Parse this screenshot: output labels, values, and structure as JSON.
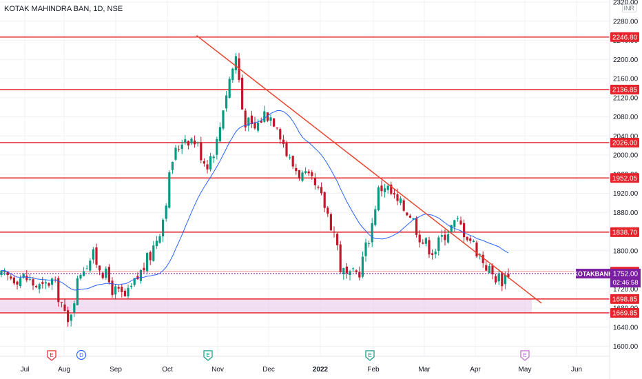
{
  "header": {
    "symbol_title": "KOTAK MAHINDRA BAN, 1D, NSE",
    "currency": "INR"
  },
  "colors": {
    "up": "#089981",
    "down": "#c2182b",
    "level": "#e4232a",
    "trend": "#e8452e",
    "ma": "#2962ff",
    "zone": "#e8c4ea",
    "price_badge": "#7b1fa2",
    "grid": "#eef0f4"
  },
  "chart_data": {
    "type": "candlestick",
    "y_axis": {
      "min": 1560,
      "max": 2320,
      "ticks": [
        1600,
        1640,
        1680,
        1720,
        1760,
        1800,
        1840,
        1880,
        1920,
        1960,
        2000,
        2040,
        2080,
        2120,
        2160,
        2200,
        2240,
        2280,
        2320
      ]
    },
    "x_axis": {
      "labels": [
        "Jul",
        "Aug",
        "Sep",
        "Oct",
        "Nov",
        "Dec",
        "2022",
        "Feb",
        "Mar",
        "Apr",
        "May",
        "Jun"
      ],
      "bold_labels": [
        "2022"
      ]
    },
    "horizontal_levels": [
      2246.8,
      2136.85,
      2026.0,
      1952.05,
      1838.7,
      1756.1,
      1698.85,
      1669.85
    ],
    "support_zone": [
      1669.85,
      1698.85
    ],
    "trendline": {
      "start": [
        "Oct 19",
        2250
      ],
      "end": [
        "May 11",
        1690
      ]
    },
    "last_price": {
      "symbol": "KOTAKBANK",
      "value": "1752.00",
      "countdown": "02:46:58"
    },
    "event_markers": [
      {
        "label": "E",
        "month": "Jul",
        "type": "earnings",
        "color": "#e4232a"
      },
      {
        "label": "D",
        "month": "Aug",
        "type": "dividend",
        "color": "#2962ff"
      },
      {
        "label": "E",
        "month": "Oct",
        "type": "earnings",
        "color": "#089981"
      },
      {
        "label": "E",
        "month": "Jan",
        "type": "earnings",
        "color": "#089981"
      },
      {
        "label": "E",
        "month": "Apr",
        "type": "earnings-upcoming",
        "color": "#ba68c8"
      }
    ],
    "moving_average": {
      "period": "",
      "color": "#2962ff"
    },
    "ohlc_nodes": [
      [
        "Jul 01",
        1745
      ],
      [
        "Jul 08",
        1730
      ],
      [
        "Jul 15",
        1720
      ],
      [
        "Jul 22",
        1740
      ],
      [
        "Jul 29",
        1700
      ],
      [
        "Aug 03",
        1640
      ],
      [
        "Aug 06",
        1690
      ],
      [
        "Aug 11",
        1760
      ],
      [
        "Aug 18",
        1790
      ],
      [
        "Aug 24",
        1760
      ],
      [
        "Aug 31",
        1715
      ],
      [
        "Sep 07",
        1700
      ],
      [
        "Sep 14",
        1745
      ],
      [
        "Sep 21",
        1790
      ],
      [
        "Sep 28",
        1860
      ],
      [
        "Oct 04",
        1990
      ],
      [
        "Oct 11",
        2040
      ],
      [
        "Oct 18",
        2030
      ],
      [
        "Oct 25",
        1980
      ],
      [
        "Nov 01",
        2030
      ],
      [
        "Nov 04",
        2100
      ],
      [
        "Nov 08",
        2160
      ],
      [
        "Nov 12",
        2210
      ],
      [
        "Nov 16",
        2080
      ],
      [
        "Nov 22",
        2050
      ],
      [
        "Nov 29",
        2090
      ],
      [
        "Dec 06",
        2070
      ],
      [
        "Dec 13",
        1990
      ],
      [
        "Dec 20",
        1960
      ],
      [
        "Dec 27",
        1940
      ],
      [
        "Jan 03",
        1900
      ],
      [
        "Jan 10",
        1830
      ],
      [
        "Jan 13",
        1760
      ],
      [
        "Jan 18",
        1740
      ],
      [
        "Jan 24",
        1760
      ],
      [
        "Jan 31",
        1850
      ],
      [
        "Feb 03",
        1920
      ],
      [
        "Feb 07",
        1940
      ],
      [
        "Feb 14",
        1900
      ],
      [
        "Feb 21",
        1880
      ],
      [
        "Feb 28",
        1820
      ],
      [
        "Mar 07",
        1800
      ],
      [
        "Mar 14",
        1840
      ],
      [
        "Mar 21",
        1860
      ],
      [
        "Mar 28",
        1830
      ],
      [
        "Apr 04",
        1790
      ],
      [
        "Apr 11",
        1750
      ],
      [
        "Apr 18",
        1740
      ],
      [
        "Apr 25",
        1780
      ],
      [
        "May 02",
        1720
      ],
      [
        "May 09",
        1700
      ],
      [
        "May 12",
        1752
      ]
    ]
  }
}
